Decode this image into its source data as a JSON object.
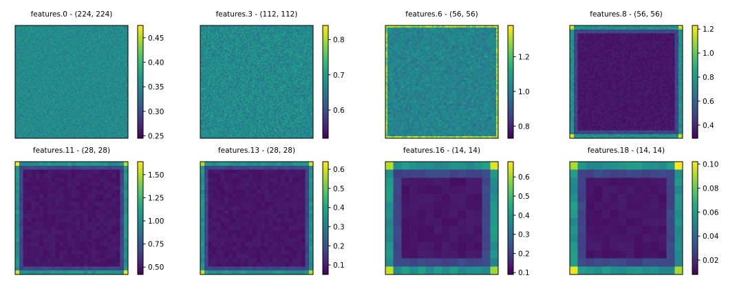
{
  "chart_data": [
    {
      "type": "heatmap",
      "title": "features.0 - (224, 224)",
      "grid_size": 224,
      "pattern": "noise",
      "colorbar": {
        "min": 0.245,
        "max": 0.475,
        "ticks": [
          0.25,
          0.3,
          0.35,
          0.4,
          0.45
        ],
        "tick_labels": [
          "0.25",
          "0.30",
          "0.35",
          "0.40",
          "0.45"
        ]
      },
      "colormap": "viridis"
    },
    {
      "type": "heatmap",
      "title": "features.3 - (112, 112)",
      "grid_size": 112,
      "pattern": "noise",
      "colorbar": {
        "min": 0.52,
        "max": 0.84,
        "ticks": [
          0.6,
          0.7,
          0.8
        ],
        "tick_labels": [
          "0.6",
          "0.7",
          "0.8"
        ]
      },
      "colormap": "viridis"
    },
    {
      "type": "heatmap",
      "title": "features.6 - (56, 56)",
      "grid_size": 56,
      "pattern": "noise-border",
      "colorbar": {
        "min": 0.73,
        "max": 1.38,
        "ticks": [
          0.8,
          1.0,
          1.2
        ],
        "tick_labels": [
          "0.8",
          "1.0",
          "1.2"
        ]
      },
      "colormap": "viridis"
    },
    {
      "type": "heatmap",
      "title": "features.8 - (56, 56)",
      "grid_size": 56,
      "pattern": "low-center-border",
      "colorbar": {
        "min": 0.29,
        "max": 1.23,
        "ticks": [
          0.4,
          0.6,
          0.8,
          1.0,
          1.2
        ],
        "tick_labels": [
          "0.4",
          "0.6",
          "0.8",
          "1.0",
          "1.2"
        ]
      },
      "colormap": "viridis"
    },
    {
      "type": "heatmap",
      "title": "features.11 - (28, 28)",
      "grid_size": 28,
      "pattern": "low-center-border",
      "colorbar": {
        "min": 0.42,
        "max": 1.64,
        "ticks": [
          0.5,
          0.75,
          1.0,
          1.25,
          1.5
        ],
        "tick_labels": [
          "0.50",
          "0.75",
          "1.00",
          "1.25",
          "1.50"
        ]
      },
      "colormap": "viridis"
    },
    {
      "type": "heatmap",
      "title": "features.13 - (28, 28)",
      "grid_size": 28,
      "pattern": "low-center-border",
      "colorbar": {
        "min": 0.05,
        "max": 0.64,
        "ticks": [
          0.1,
          0.2,
          0.3,
          0.4,
          0.5,
          0.6
        ],
        "tick_labels": [
          "0.1",
          "0.2",
          "0.3",
          "0.4",
          "0.5",
          "0.6"
        ]
      },
      "colormap": "viridis"
    },
    {
      "type": "heatmap",
      "title": "features.16 - (14, 14)",
      "grid_size": 14,
      "pattern": "low-center-border",
      "colorbar": {
        "min": 0.09,
        "max": 0.68,
        "ticks": [
          0.1,
          0.2,
          0.3,
          0.4,
          0.5,
          0.6
        ],
        "tick_labels": [
          "0.1",
          "0.2",
          "0.3",
          "0.4",
          "0.5",
          "0.6"
        ]
      },
      "colormap": "viridis"
    },
    {
      "type": "heatmap",
      "title": "features.18 - (14, 14)",
      "grid_size": 14,
      "pattern": "low-center-border",
      "colorbar": {
        "min": 0.008,
        "max": 0.102,
        "ticks": [
          0.02,
          0.04,
          0.06,
          0.08,
          0.1
        ],
        "tick_labels": [
          "0.02",
          "0.04",
          "0.06",
          "0.08",
          "0.10"
        ]
      },
      "colormap": "viridis"
    }
  ]
}
